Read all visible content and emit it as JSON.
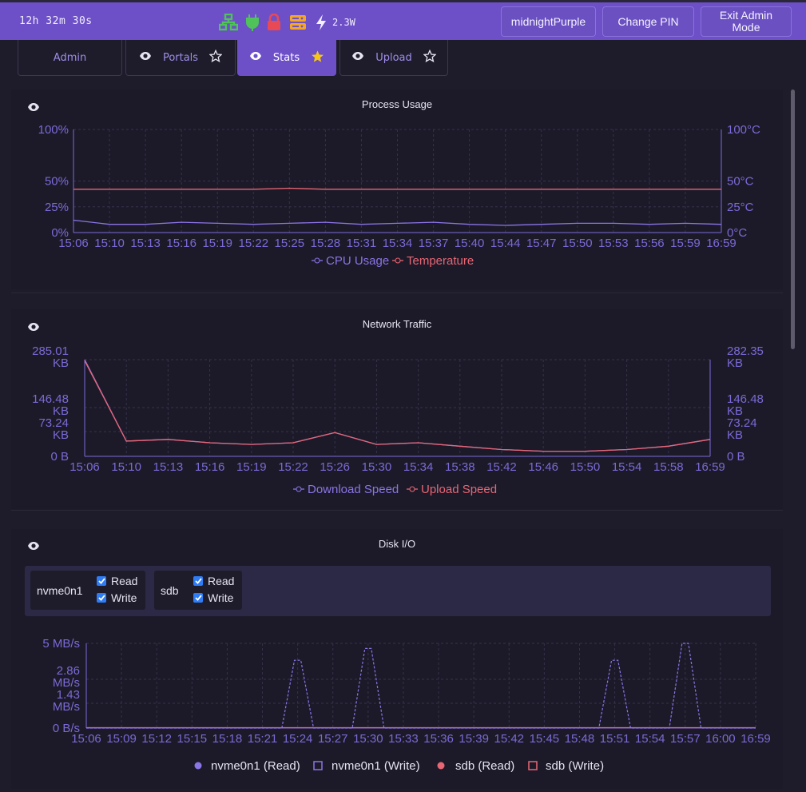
{
  "topbar": {
    "uptime": "12h 32m 30s",
    "power": "2.3W",
    "icons": [
      "network-icon",
      "plug-icon",
      "lock-icon",
      "server-icon",
      "lightning-icon"
    ],
    "buttons": [
      "midnightPurple",
      "Change PIN",
      "Exit Admin Mode"
    ]
  },
  "tabs": [
    {
      "label": "Admin",
      "starred": false,
      "active": false
    },
    {
      "label": "Portals",
      "starred": false,
      "active": false
    },
    {
      "label": "Stats",
      "starred": true,
      "active": true
    },
    {
      "label": "Upload",
      "starred": false,
      "active": false
    }
  ],
  "process": {
    "title": "Process Usage",
    "left_ticks": [
      "100%",
      "50%",
      "25%",
      "0%"
    ],
    "right_ticks": [
      "100°C",
      "50°C",
      "25°C",
      "0°C"
    ],
    "x_ticks": [
      "15:06",
      "15:10",
      "15:13",
      "15:16",
      "15:19",
      "15:22",
      "15:25",
      "15:28",
      "15:31",
      "15:34",
      "15:37",
      "15:40",
      "15:44",
      "15:47",
      "15:50",
      "15:53",
      "15:56",
      "15:59",
      "16:59"
    ],
    "legend": [
      "CPU Usage",
      "Temperature"
    ]
  },
  "network": {
    "title": "Network Traffic",
    "left_ticks": [
      [
        "285.01",
        "KB"
      ],
      [
        "146.48",
        "KB"
      ],
      [
        "73.24",
        "KB"
      ],
      [
        "0 B",
        ""
      ]
    ],
    "right_ticks": [
      [
        "282.35",
        "KB"
      ],
      [
        "146.48",
        "KB"
      ],
      [
        "73.24",
        "KB"
      ],
      [
        "0 B",
        ""
      ]
    ],
    "x_ticks": [
      "15:06",
      "15:10",
      "15:13",
      "15:16",
      "15:19",
      "15:22",
      "15:26",
      "15:30",
      "15:34",
      "15:38",
      "15:42",
      "15:46",
      "15:50",
      "15:54",
      "15:58",
      "16:59"
    ],
    "legend": [
      "Download Speed",
      "Upload Speed"
    ]
  },
  "disk": {
    "title": "Disk I/O",
    "devices": [
      {
        "name": "nvme0n1",
        "read": "Read",
        "write": "Write"
      },
      {
        "name": "sdb",
        "read": "Read",
        "write": "Write"
      }
    ],
    "y_ticks": [
      [
        "5 MB/s"
      ],
      [
        "2.86",
        "MB/s"
      ],
      [
        "1.43",
        "MB/s"
      ],
      [
        "0 B/s"
      ]
    ],
    "x_ticks": [
      "15:06",
      "15:09",
      "15:12",
      "15:15",
      "15:18",
      "15:21",
      "15:24",
      "15:27",
      "15:30",
      "15:33",
      "15:36",
      "15:39",
      "15:42",
      "15:45",
      "15:48",
      "15:51",
      "15:54",
      "15:57",
      "16:00",
      "16:59"
    ],
    "legend": [
      "nvme0n1 (Read)",
      "nvme0n1 (Write)",
      "sdb (Read)",
      "sdb (Write)"
    ]
  },
  "chart_data": [
    {
      "type": "line",
      "title": "Process Usage",
      "x": [
        "15:06",
        "15:10",
        "15:13",
        "15:16",
        "15:19",
        "15:22",
        "15:25",
        "15:28",
        "15:31",
        "15:34",
        "15:37",
        "15:40",
        "15:44",
        "15:47",
        "15:50",
        "15:53",
        "15:56",
        "15:59",
        "16:59"
      ],
      "ylim": [
        0,
        100
      ],
      "series": [
        {
          "name": "CPU Usage",
          "color": "#8b74e6",
          "values": [
            12,
            8,
            8,
            10,
            9,
            8,
            9,
            10,
            8,
            9,
            10,
            8,
            7,
            8,
            9,
            9,
            8,
            9,
            8
          ]
        },
        {
          "name": "Temperature",
          "color": "#e86674",
          "values": [
            42,
            42,
            42,
            42,
            42,
            42,
            43,
            42,
            42,
            42,
            42,
            42,
            42,
            42,
            42,
            42,
            42,
            42,
            42
          ]
        }
      ]
    },
    {
      "type": "line",
      "title": "Network Traffic",
      "x": [
        "15:06",
        "15:10",
        "15:13",
        "15:16",
        "15:19",
        "15:22",
        "15:26",
        "15:30",
        "15:34",
        "15:38",
        "15:42",
        "15:46",
        "15:50",
        "15:54",
        "15:58",
        "16:59"
      ],
      "series": [
        {
          "name": "Download Speed",
          "color": "#8b74e6",
          "values": [
            285,
            45,
            50,
            40,
            35,
            40,
            70,
            35,
            40,
            30,
            20,
            15,
            15,
            20,
            30,
            50
          ]
        },
        {
          "name": "Upload Speed",
          "color": "#e86674",
          "values": [
            282,
            45,
            50,
            40,
            35,
            40,
            70,
            35,
            40,
            30,
            20,
            15,
            15,
            20,
            30,
            50
          ]
        }
      ]
    },
    {
      "type": "line",
      "title": "Disk I/O",
      "x": [
        "15:06",
        "15:09",
        "15:12",
        "15:15",
        "15:18",
        "15:21",
        "15:24",
        "15:27",
        "15:30",
        "15:33",
        "15:36",
        "15:39",
        "15:42",
        "15:45",
        "15:48",
        "15:51",
        "15:54",
        "15:57",
        "16:00",
        "16:59"
      ],
      "ylim": [
        0,
        5
      ],
      "series": [
        {
          "name": "nvme0n1 (Read)",
          "color": "#8b74e6",
          "values": [
            0,
            0,
            0,
            0,
            0,
            0,
            0,
            0,
            0,
            0,
            0,
            0,
            0,
            0,
            0,
            0,
            0,
            0,
            0,
            0
          ]
        },
        {
          "name": "nvme0n1 (Write)",
          "color": "#8b74e6",
          "values": [
            0,
            0,
            0,
            0,
            0,
            0,
            4.0,
            0,
            4.7,
            0,
            0,
            0,
            0,
            0,
            0,
            4.0,
            0,
            5.0,
            0,
            0
          ]
        },
        {
          "name": "sdb (Read)",
          "color": "#e86674",
          "values": [
            0,
            0,
            0,
            0,
            0,
            0,
            0,
            0,
            0,
            0,
            0,
            0,
            0,
            0,
            0,
            0,
            0,
            0,
            0,
            0
          ]
        },
        {
          "name": "sdb (Write)",
          "color": "#e86674",
          "values": [
            0,
            0,
            0,
            0,
            0,
            0,
            0,
            0,
            0,
            0,
            0,
            0,
            0,
            0,
            0,
            0,
            0,
            0,
            0,
            0
          ]
        }
      ]
    }
  ]
}
